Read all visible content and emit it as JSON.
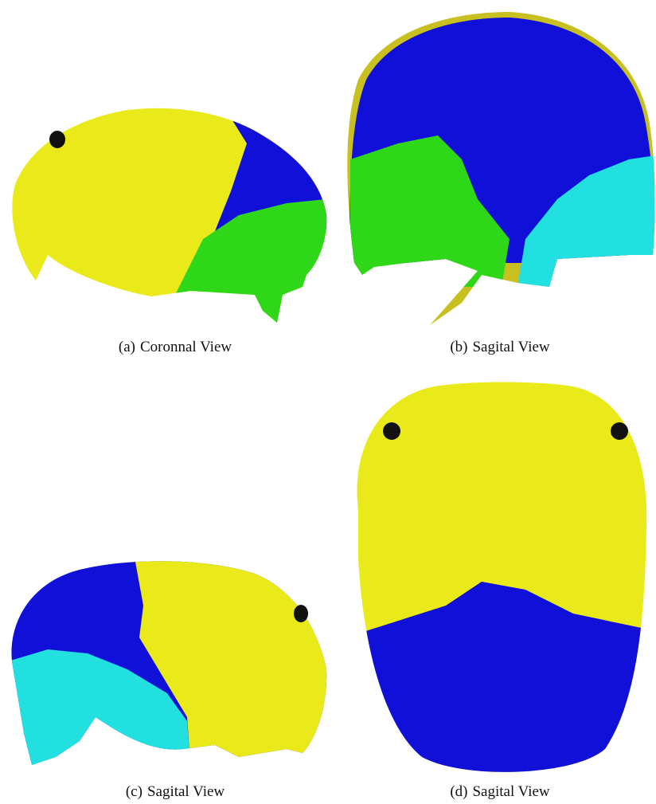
{
  "figures": [
    {
      "label": "(a)",
      "caption": "Coronnal View"
    },
    {
      "label": "(b)",
      "caption": "Sagital View"
    },
    {
      "label": "(c)",
      "caption": "Sagital View"
    },
    {
      "label": "(d)",
      "caption": "Sagital View"
    }
  ]
}
